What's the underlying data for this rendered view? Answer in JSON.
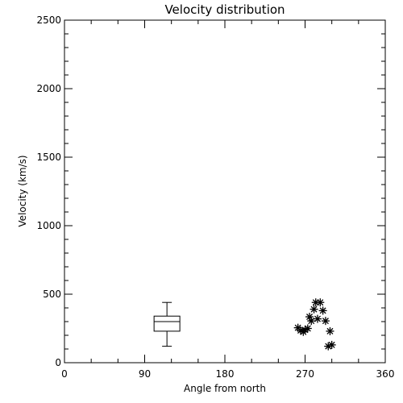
{
  "chart_data": {
    "type": "scatter",
    "title": "Velocity distribution",
    "xlabel": "Angle from north",
    "ylabel": "Velocity (km/s)",
    "xlim": [
      0,
      360
    ],
    "ylim": [
      0,
      2500
    ],
    "xticks": [
      0,
      90,
      180,
      270,
      360
    ],
    "yticks": [
      0,
      500,
      1000,
      1500,
      2000,
      2500
    ],
    "grid": false,
    "box": {
      "x": 115,
      "whisker_low": 120,
      "q1": 230,
      "median": 300,
      "q3": 340,
      "whisker_high": 440
    },
    "points": [
      {
        "x": 262,
        "y": 255
      },
      {
        "x": 265,
        "y": 235
      },
      {
        "x": 268,
        "y": 225
      },
      {
        "x": 270,
        "y": 240
      },
      {
        "x": 273,
        "y": 250
      },
      {
        "x": 275,
        "y": 335
      },
      {
        "x": 277,
        "y": 305
      },
      {
        "x": 280,
        "y": 390
      },
      {
        "x": 282,
        "y": 440
      },
      {
        "x": 284,
        "y": 320
      },
      {
        "x": 287,
        "y": 440
      },
      {
        "x": 290,
        "y": 380
      },
      {
        "x": 293,
        "y": 305
      },
      {
        "x": 296,
        "y": 120
      },
      {
        "x": 298,
        "y": 230
      },
      {
        "x": 300,
        "y": 130
      }
    ]
  }
}
